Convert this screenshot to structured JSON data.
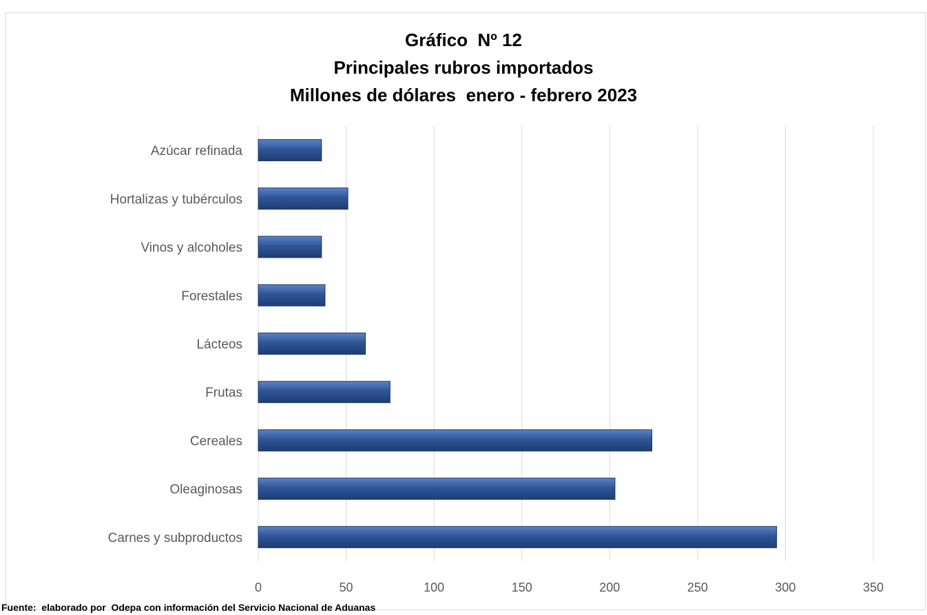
{
  "chart_data": {
    "type": "bar",
    "orientation": "horizontal",
    "title_lines": [
      "Gráfico  Nº 12",
      "Principales rubros importados",
      "Millones de dólares  enero - febrero 2023"
    ],
    "categories": [
      "Azúcar refinada",
      "Hortalizas y tubérculos",
      "Vinos y alcoholes",
      "Forestales",
      "Lácteos",
      "Frutas",
      "Cereales",
      "Oleaginosas",
      "Carnes y subproductos"
    ],
    "values": [
      36,
      51,
      36,
      38,
      61,
      75,
      224,
      203,
      295
    ],
    "xlim": [
      0,
      350
    ],
    "xticks": [
      0,
      50,
      100,
      150,
      200,
      250,
      300,
      350
    ],
    "grid": "vertical",
    "bar_color": "#2f5597"
  },
  "source": "Fuente:  elaborado por  Odepa con información del Servicio Nacional de Aduanas"
}
